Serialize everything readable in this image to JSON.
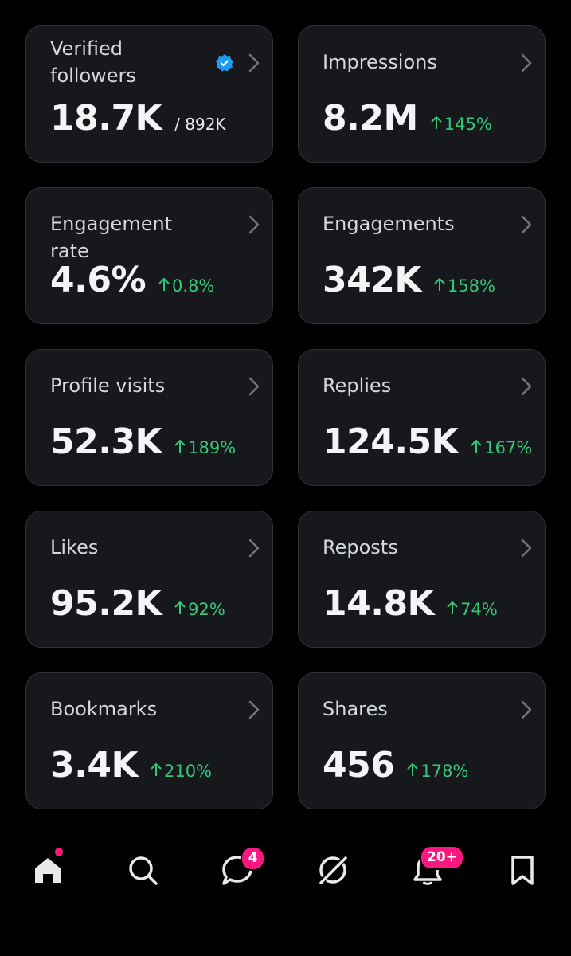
{
  "cards": [
    {
      "label": "Verified followers",
      "value": "18.7K",
      "total": "/ 892K"
    },
    {
      "label": "Impressions",
      "value": "8.2M",
      "change": "145%"
    },
    {
      "label": "Engagement rate",
      "value": "4.6%",
      "change": "0.8%"
    },
    {
      "label": "Engagements",
      "value": "342K",
      "change": "158%"
    },
    {
      "label": "Profile visits",
      "value": "52.3K",
      "change": "189%"
    },
    {
      "label": "Replies",
      "value": "124.5K",
      "change": "167%"
    },
    {
      "label": "Likes",
      "value": "95.2K",
      "change": "92%"
    },
    {
      "label": "Reposts",
      "value": "14.8K",
      "change": "74%"
    },
    {
      "label": "Bookmarks",
      "value": "3.4K",
      "change": "210%"
    },
    {
      "label": "Shares",
      "value": "456",
      "change": "178%"
    }
  ],
  "navigation": {
    "messages_badge": "4",
    "notifications_badge": "20+"
  }
}
